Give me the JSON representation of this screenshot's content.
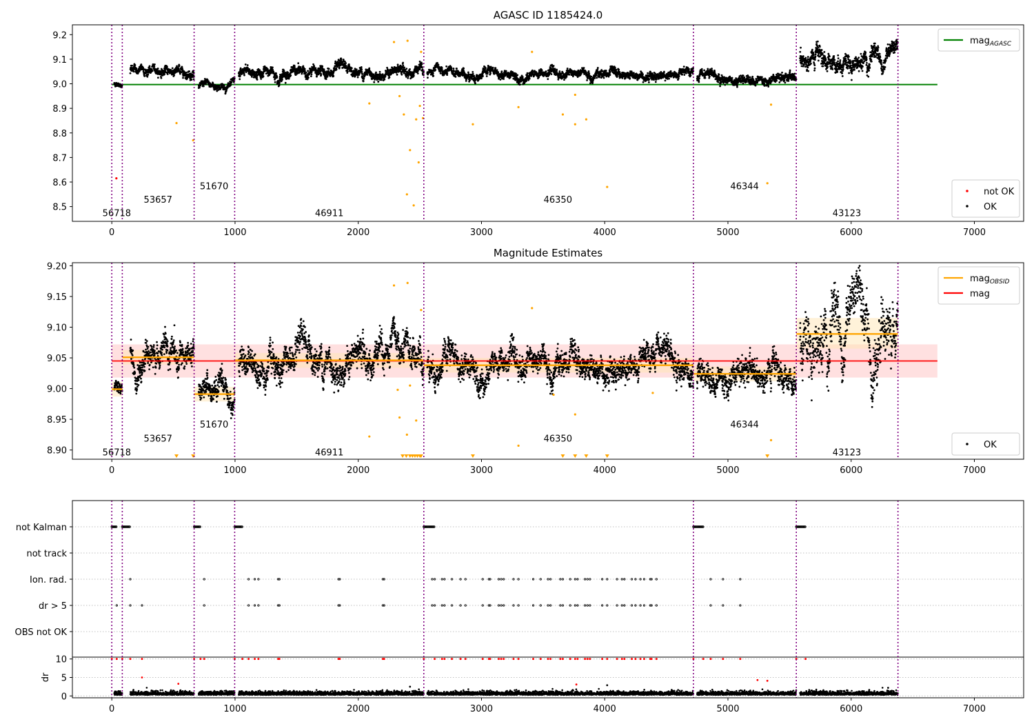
{
  "colors": {
    "black": "#000000",
    "orange": "#ffa500",
    "red": "#ff0000",
    "green": "#008000",
    "purple": "#800080",
    "light_red": "#ffcccc",
    "light_orange": "#ffe6b3"
  },
  "chart_data": [
    {
      "type": "scatter",
      "title": "AGASC ID 1185424.0",
      "xlim": [
        -320,
        7400
      ],
      "ylim": [
        8.44,
        9.24
      ],
      "x_ticks": [
        0,
        1000,
        2000,
        3000,
        4000,
        5000,
        6000,
        7000
      ],
      "y_ticks": [
        8.5,
        8.6,
        8.7,
        8.8,
        8.9,
        9.0,
        9.1,
        9.2
      ],
      "y_tick_labels": [
        "8.5",
        "8.6",
        "8.7",
        "8.8",
        "8.9",
        "9.0",
        "9.1",
        "9.2"
      ],
      "mag_agasc": 8.997,
      "mag_agasc_x_range": [
        0,
        6700
      ],
      "obsid_boundaries": [
        0,
        85,
        668,
        997,
        2532,
        4720,
        5555,
        6380
      ],
      "obsid_labels": [
        {
          "text": "56718",
          "x": 40,
          "y": 8.475
        },
        {
          "text": "53657",
          "x": 375,
          "y": 8.53
        },
        {
          "text": "51670",
          "x": 830,
          "y": 8.585
        },
        {
          "text": "46911",
          "x": 1765,
          "y": 8.475
        },
        {
          "text": "46350",
          "x": 3620,
          "y": 8.53
        },
        {
          "text": "46344",
          "x": 5135,
          "y": 8.585
        },
        {
          "text": "43123",
          "x": 5965,
          "y": 8.475
        }
      ],
      "segments": [
        {
          "x0": 20,
          "x1": 85,
          "level": 9.0,
          "amp": 0.006
        },
        {
          "x0": 150,
          "x1": 668,
          "level": 9.052,
          "amp": 0.012
        },
        {
          "x0": 705,
          "x1": 997,
          "level": 8.99,
          "amp": 0.01
        },
        {
          "x0": 1030,
          "x1": 2532,
          "level": 9.047,
          "amp": 0.014
        },
        {
          "x0": 2560,
          "x1": 4720,
          "level": 9.038,
          "amp": 0.012
        },
        {
          "x0": 4750,
          "x1": 5555,
          "level": 9.022,
          "amp": 0.012
        },
        {
          "x0": 5585,
          "x1": 6380,
          "level": 9.1,
          "amp": 0.025
        }
      ],
      "outliers": [
        {
          "x": 37,
          "y": 8.615,
          "color": "red"
        },
        {
          "x": 525,
          "y": 8.84
        },
        {
          "x": 660,
          "y": 8.77
        },
        {
          "x": 2090,
          "y": 8.92
        },
        {
          "x": 2290,
          "y": 9.17
        },
        {
          "x": 2400,
          "y": 9.175
        },
        {
          "x": 2335,
          "y": 8.95
        },
        {
          "x": 2370,
          "y": 8.875
        },
        {
          "x": 2395,
          "y": 8.55
        },
        {
          "x": 2420,
          "y": 8.73
        },
        {
          "x": 2450,
          "y": 8.505
        },
        {
          "x": 2470,
          "y": 8.855
        },
        {
          "x": 2490,
          "y": 8.68
        },
        {
          "x": 2500,
          "y": 8.91
        },
        {
          "x": 2510,
          "y": 9.13
        },
        {
          "x": 2525,
          "y": 8.86
        },
        {
          "x": 2930,
          "y": 8.835
        },
        {
          "x": 3300,
          "y": 8.905
        },
        {
          "x": 3410,
          "y": 9.13
        },
        {
          "x": 3660,
          "y": 8.875
        },
        {
          "x": 3760,
          "y": 8.955
        },
        {
          "x": 3760,
          "y": 8.835
        },
        {
          "x": 3850,
          "y": 8.855
        },
        {
          "x": 4020,
          "y": 8.58
        },
        {
          "x": 5320,
          "y": 8.595
        },
        {
          "x": 5350,
          "y": 8.915
        }
      ],
      "legends": [
        {
          "position": "top-right",
          "entries": [
            {
              "label": "mag",
              "sub": "AGASC",
              "kind": "line",
              "color": "green"
            }
          ]
        },
        {
          "position": "bottom-right",
          "entries": [
            {
              "label": "not OK",
              "kind": "dot",
              "color": "red"
            },
            {
              "label": "OK",
              "kind": "dot",
              "color": "black"
            }
          ]
        }
      ]
    },
    {
      "type": "scatter",
      "title": "Magnitude Estimates",
      "xlim": [
        -320,
        7400
      ],
      "ylim": [
        8.885,
        9.205
      ],
      "x_ticks": [
        0,
        1000,
        2000,
        3000,
        4000,
        5000,
        6000,
        7000
      ],
      "y_ticks": [
        8.9,
        8.95,
        9.0,
        9.05,
        9.1,
        9.15,
        9.2
      ],
      "y_tick_labels": [
        "8.90",
        "8.95",
        "9.00",
        "9.05",
        "9.10",
        "9.15",
        "9.20"
      ],
      "mag": 9.045,
      "mag_band": [
        9.018,
        9.072
      ],
      "mag_x_range": [
        0,
        6700
      ],
      "mag_obsid": [
        {
          "x0": 0,
          "x1": 85,
          "y": 8.999
        },
        {
          "x0": 85,
          "x1": 668,
          "y": 9.051
        },
        {
          "x0": 668,
          "x1": 997,
          "y": 8.991
        },
        {
          "x0": 997,
          "x1": 2532,
          "y": 9.046
        },
        {
          "x0": 2532,
          "x1": 4720,
          "y": 9.038
        },
        {
          "x0": 4720,
          "x1": 5555,
          "y": 9.024
        },
        {
          "x0": 5555,
          "x1": 6380,
          "y": 9.089
        }
      ],
      "obsid_band_half_width": 0.012,
      "upper_band_5555": [
        9.065,
        9.115
      ],
      "obsid_labels": [
        {
          "text": "56718",
          "x": 40,
          "y": 8.897
        },
        {
          "text": "53657",
          "x": 375,
          "y": 8.919
        },
        {
          "text": "51670",
          "x": 830,
          "y": 8.942
        },
        {
          "text": "46911",
          "x": 1765,
          "y": 8.897
        },
        {
          "text": "46350",
          "x": 3620,
          "y": 8.919
        },
        {
          "text": "46344",
          "x": 5135,
          "y": 8.942
        },
        {
          "text": "43123",
          "x": 5965,
          "y": 8.897
        }
      ],
      "outliers": [
        {
          "x": 2090,
          "y": 8.922
        },
        {
          "x": 2290,
          "y": 9.168
        },
        {
          "x": 2400,
          "y": 9.172
        },
        {
          "x": 2335,
          "y": 8.953
        },
        {
          "x": 2395,
          "y": 8.925
        },
        {
          "x": 2420,
          "y": 9.005
        },
        {
          "x": 2470,
          "y": 8.948
        },
        {
          "x": 2510,
          "y": 9.128
        },
        {
          "x": 3300,
          "y": 8.907
        },
        {
          "x": 3410,
          "y": 9.131
        },
        {
          "x": 3760,
          "y": 8.958
        },
        {
          "x": 5350,
          "y": 8.916
        },
        {
          "x": 2320,
          "y": 8.998
        },
        {
          "x": 3585,
          "y": 8.99
        },
        {
          "x": 4390,
          "y": 8.993
        }
      ],
      "lower_markers_x": [
        525,
        660,
        2360,
        2390,
        2420,
        2440,
        2460,
        2480,
        2500,
        2510,
        2930,
        3660,
        3760,
        3850,
        4020,
        5320
      ],
      "legends": [
        {
          "position": "top-right",
          "entries": [
            {
              "label": "mag",
              "sub": "OBSID",
              "kind": "line",
              "color": "orange"
            },
            {
              "label": "mag",
              "kind": "line",
              "color": "red"
            }
          ]
        },
        {
          "position": "bottom-right",
          "entries": [
            {
              "label": "OK",
              "kind": "dot",
              "color": "black"
            }
          ]
        }
      ]
    },
    {
      "type": "scatter",
      "xlim": [
        -320,
        7400
      ],
      "x_ticks": [
        0,
        1000,
        2000,
        3000,
        4000,
        5000,
        6000,
        7000
      ],
      "flag_rows": [
        "not Kalman",
        "not track",
        "Ion. rad.",
        "dr > 5",
        "OBS not OK"
      ],
      "not_kalman_ranges": [
        [
          0,
          40
        ],
        [
          85,
          150
        ],
        [
          668,
          720
        ],
        [
          997,
          1060
        ],
        [
          2532,
          2620
        ],
        [
          4720,
          4800
        ],
        [
          5555,
          5630
        ]
      ],
      "ion_rad_x": [
        150,
        750,
        1110,
        1160,
        1190,
        1350,
        1360,
        1840,
        1850,
        2200,
        2210,
        2600,
        2620,
        2680,
        2700,
        2760,
        2830,
        2870,
        3010,
        3060,
        3070,
        3140,
        3160,
        3180,
        3260,
        3300,
        3420,
        3480,
        3540,
        3560,
        3640,
        3660,
        3720,
        3760,
        3780,
        3840,
        3860,
        3880,
        3980,
        4020,
        4100,
        4140,
        4160,
        4220,
        4250,
        4290,
        4320,
        4370,
        4380,
        4420,
        4860,
        4960,
        5100
      ],
      "dr5_x": [
        40,
        150,
        245,
        750,
        1110,
        1160,
        1190,
        1350,
        1360,
        1840,
        1850,
        2200,
        2210,
        2600,
        2620,
        2680,
        2700,
        2760,
        2830,
        2870,
        3010,
        3060,
        3070,
        3140,
        3160,
        3180,
        3260,
        3300,
        3420,
        3480,
        3540,
        3560,
        3640,
        3660,
        3720,
        3760,
        3780,
        3840,
        3860,
        3880,
        3980,
        4020,
        4100,
        4140,
        4160,
        4220,
        4250,
        4290,
        4320,
        4370,
        4380,
        4420,
        4860,
        4960,
        5100
      ],
      "ylabel": "dr",
      "dr_ylim": [
        -0.5,
        10.5
      ],
      "dr_ticks": [
        0,
        5,
        10
      ],
      "dr_tick_labels": [
        "0",
        "5",
        "10"
      ],
      "dr_red_x": [
        0,
        40,
        85,
        150,
        245,
        668,
        720,
        750,
        997,
        1060,
        1110,
        1160,
        1190,
        1350,
        1360,
        1840,
        1850,
        2200,
        2210,
        2532,
        2620,
        2680,
        2700,
        2760,
        2830,
        2870,
        3010,
        3060,
        3070,
        3140,
        3160,
        3180,
        3260,
        3300,
        3420,
        3480,
        3540,
        3560,
        3640,
        3660,
        3720,
        3760,
        3780,
        3840,
        3860,
        3880,
        3980,
        4020,
        4100,
        4140,
        4160,
        4220,
        4250,
        4290,
        4320,
        4370,
        4380,
        4420,
        4720,
        4800,
        4860,
        4960,
        5100,
        5555,
        5630
      ],
      "dr_extra_points": [
        {
          "x": 245,
          "y": 5.0,
          "color": "red"
        },
        {
          "x": 540,
          "y": 3.3,
          "color": "red"
        },
        {
          "x": 3770,
          "y": 3.1,
          "color": "red"
        },
        {
          "x": 5240,
          "y": 4.3,
          "color": "red"
        },
        {
          "x": 5320,
          "y": 4.1,
          "color": "red"
        },
        {
          "x": 4020,
          "y": 2.9,
          "color": "black"
        },
        {
          "x": 2420,
          "y": 2.5,
          "color": "black"
        },
        {
          "x": 6300,
          "y": 2.2,
          "color": "black"
        }
      ],
      "segments_dr": [
        [
          20,
          85
        ],
        [
          150,
          668
        ],
        [
          705,
          997
        ],
        [
          1030,
          2532
        ],
        [
          2560,
          4720
        ],
        [
          4750,
          5555
        ],
        [
          5585,
          6380
        ]
      ],
      "obsid_boundaries": [
        0,
        85,
        668,
        997,
        2532,
        4720,
        5555,
        6380
      ]
    }
  ]
}
